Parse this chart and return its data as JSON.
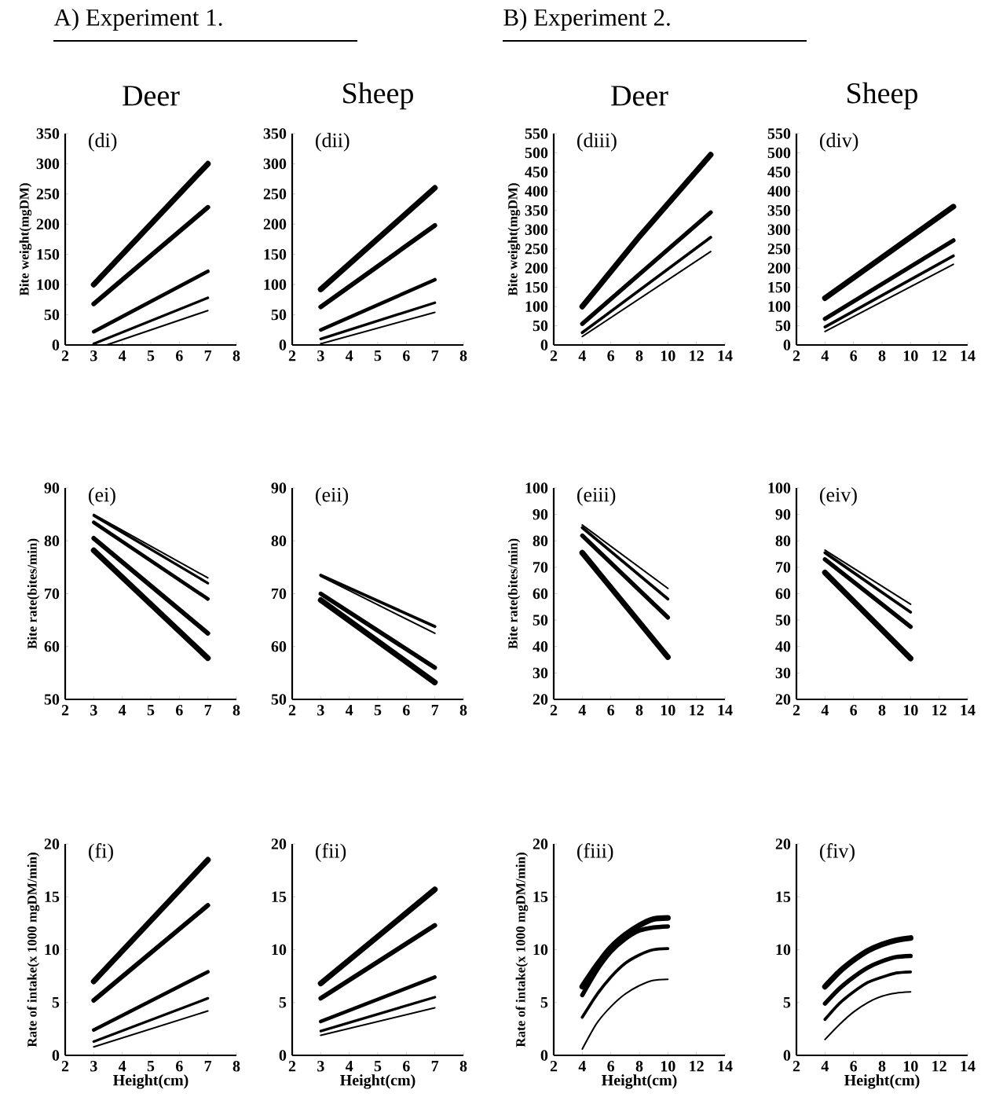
{
  "chart_data": [
    {
      "type": "line",
      "title": "(di)",
      "subtitle": "Deer",
      "annotations": [
        "A) Experiment 1."
      ],
      "ylabel": "Bite weight(mgDM)",
      "x": [
        3,
        7
      ],
      "xlim": [
        2,
        8
      ],
      "xticks": [
        2,
        3,
        4,
        5,
        6,
        7,
        8
      ],
      "ylim": [
        0,
        350
      ],
      "yticks": [
        0,
        50,
        100,
        150,
        200,
        250,
        300,
        350
      ],
      "series": [
        {
          "color": "#000000",
          "values": [
            100,
            300
          ]
        },
        {
          "color": "#000000",
          "values": [
            68,
            228
          ]
        },
        {
          "color": "#000000",
          "values": [
            22,
            122
          ]
        },
        {
          "color": "#000000",
          "values": [
            2,
            78
          ]
        },
        {
          "color": "#000000",
          "x": [
            3.45,
            7
          ],
          "values": [
            0,
            57
          ]
        }
      ]
    },
    {
      "type": "line",
      "title": "(dii)",
      "subtitle": "Sheep",
      "x": [
        3,
        7
      ],
      "xlim": [
        2,
        8
      ],
      "xticks": [
        2,
        3,
        4,
        5,
        6,
        7,
        8
      ],
      "ylim": [
        0,
        350
      ],
      "yticks": [
        0,
        50,
        100,
        150,
        200,
        250,
        300,
        350
      ],
      "series": [
        {
          "color": "#000000",
          "values": [
            92,
            260
          ]
        },
        {
          "color": "#000000",
          "values": [
            63,
            198
          ]
        },
        {
          "color": "#000000",
          "values": [
            25,
            108
          ]
        },
        {
          "color": "#000000",
          "values": [
            10,
            70
          ]
        },
        {
          "color": "#000000",
          "values": [
            2,
            54
          ]
        }
      ]
    },
    {
      "type": "line",
      "title": "(diii)",
      "subtitle": "Deer",
      "annotations": [
        "B) Experiment 2."
      ],
      "ylabel": "Bite weight(mgDM)",
      "x": [
        4,
        13
      ],
      "xlim": [
        2,
        14
      ],
      "xticks": [
        2,
        4,
        6,
        8,
        10,
        12,
        14
      ],
      "ylim": [
        0,
        550
      ],
      "yticks": [
        0,
        50,
        100,
        150,
        200,
        250,
        300,
        350,
        400,
        450,
        500,
        550
      ],
      "series": [
        {
          "color": "#000000",
          "x": [
            4,
            8,
            13
          ],
          "values": [
            100,
            282,
            495
          ]
        },
        {
          "color": "#000000",
          "values": [
            55,
            345
          ]
        },
        {
          "color": "#000000",
          "values": [
            32,
            280
          ]
        },
        {
          "color": "#000000",
          "values": [
            22,
            243
          ]
        }
      ]
    },
    {
      "type": "line",
      "title": "(div)",
      "subtitle": "Sheep",
      "x": [
        4,
        13
      ],
      "xlim": [
        2,
        14
      ],
      "xticks": [
        2,
        4,
        6,
        8,
        10,
        12,
        14
      ],
      "ylim": [
        0,
        550
      ],
      "yticks": [
        0,
        50,
        100,
        150,
        200,
        250,
        300,
        350,
        400,
        450,
        500,
        550
      ],
      "series": [
        {
          "color": "#000000",
          "values": [
            122,
            360
          ]
        },
        {
          "color": "#000000",
          "values": [
            68,
            272
          ]
        },
        {
          "color": "#000000",
          "values": [
            47,
            232
          ]
        },
        {
          "color": "#000000",
          "values": [
            35,
            210
          ]
        }
      ]
    },
    {
      "type": "line",
      "title": "(ei)",
      "ylabel": "Bite rate(bites/min)",
      "x": [
        3,
        7
      ],
      "xlim": [
        2,
        8
      ],
      "xticks": [
        2,
        3,
        4,
        5,
        6,
        7,
        8
      ],
      "ylim": [
        50,
        90
      ],
      "yticks": [
        50,
        60,
        70,
        80,
        90
      ],
      "series": [
        {
          "color": "#000000",
          "values": [
            78.2,
            57.8
          ]
        },
        {
          "color": "#000000",
          "values": [
            80.5,
            62.5
          ]
        },
        {
          "color": "#000000",
          "values": [
            83.5,
            69
          ]
        },
        {
          "color": "#000000",
          "values": [
            84.8,
            72
          ]
        },
        {
          "color": "#000000",
          "values": [
            85,
            73
          ]
        }
      ]
    },
    {
      "type": "line",
      "title": "(eii)",
      "x": [
        3,
        7
      ],
      "xlim": [
        2,
        8
      ],
      "xticks": [
        2,
        3,
        4,
        5,
        6,
        7,
        8
      ],
      "ylim": [
        50,
        90
      ],
      "yticks": [
        50,
        60,
        70,
        80,
        90
      ],
      "series": [
        {
          "color": "#000000",
          "values": [
            68.8,
            53.2
          ]
        },
        {
          "color": "#000000",
          "values": [
            70,
            56
          ]
        },
        {
          "color": "#000000",
          "values": [
            73.5,
            63.8
          ]
        },
        {
          "color": "#000000",
          "values": [
            73.3,
            62.5
          ]
        }
      ]
    },
    {
      "type": "line",
      "title": "(eiii)",
      "ylabel": "Bite rate(bites/min)",
      "x": [
        4,
        10
      ],
      "xlim": [
        2,
        14
      ],
      "xticks": [
        2,
        4,
        6,
        8,
        10,
        12,
        14
      ],
      "ylim": [
        20,
        100
      ],
      "yticks": [
        20,
        30,
        40,
        50,
        60,
        70,
        80,
        90,
        100
      ],
      "series": [
        {
          "color": "#000000",
          "values": [
            75.5,
            36
          ]
        },
        {
          "color": "#000000",
          "values": [
            82,
            51
          ]
        },
        {
          "color": "#000000",
          "values": [
            85,
            58
          ]
        },
        {
          "color": "#000000",
          "values": [
            86,
            62
          ]
        }
      ]
    },
    {
      "type": "line",
      "title": "(eiv)",
      "x": [
        4,
        10
      ],
      "xlim": [
        2,
        14
      ],
      "xticks": [
        2,
        4,
        6,
        8,
        10,
        12,
        14
      ],
      "ylim": [
        20,
        100
      ],
      "yticks": [
        20,
        30,
        40,
        50,
        60,
        70,
        80,
        90,
        100
      ],
      "series": [
        {
          "color": "#000000",
          "values": [
            68,
            35.5
          ]
        },
        {
          "color": "#000000",
          "values": [
            73,
            47.5
          ]
        },
        {
          "color": "#000000",
          "values": [
            75.5,
            53
          ]
        },
        {
          "color": "#000000",
          "values": [
            76.5,
            56
          ]
        }
      ]
    },
    {
      "type": "line",
      "title": "(fi)",
      "ylabel": "Rate of intake(x 1000 mgDM/min)",
      "xlabel": "Height(cm)",
      "x": [
        3,
        7
      ],
      "xlim": [
        2,
        8
      ],
      "xticks": [
        2,
        3,
        4,
        5,
        6,
        7,
        8
      ],
      "ylim": [
        0,
        20
      ],
      "yticks": [
        0,
        5,
        10,
        15,
        20
      ],
      "series": [
        {
          "color": "#000000",
          "values": [
            7,
            18.5
          ]
        },
        {
          "color": "#000000",
          "values": [
            5.2,
            14.2
          ]
        },
        {
          "color": "#000000",
          "values": [
            2.4,
            7.9
          ]
        },
        {
          "color": "#000000",
          "values": [
            1.3,
            5.4
          ]
        },
        {
          "color": "#000000",
          "values": [
            0.8,
            4.2
          ]
        }
      ]
    },
    {
      "type": "line",
      "title": "(fii)",
      "xlabel": "Height(cm)",
      "x": [
        3,
        7
      ],
      "xlim": [
        2,
        8
      ],
      "xticks": [
        2,
        3,
        4,
        5,
        6,
        7,
        8
      ],
      "ylim": [
        0,
        20
      ],
      "yticks": [
        0,
        5,
        10,
        15,
        20
      ],
      "series": [
        {
          "color": "#000000",
          "values": [
            6.8,
            15.7
          ]
        },
        {
          "color": "#000000",
          "values": [
            5.4,
            12.3
          ]
        },
        {
          "color": "#000000",
          "values": [
            3.2,
            7.4
          ]
        },
        {
          "color": "#000000",
          "values": [
            2.3,
            5.5
          ]
        },
        {
          "color": "#000000",
          "values": [
            1.9,
            4.5
          ]
        }
      ]
    },
    {
      "type": "line",
      "title": "(fiii)",
      "ylabel": "Rate of intake(x 1000 mgDM/min)",
      "xlabel": "Height(cm)",
      "x": [
        4,
        5,
        6,
        7,
        8,
        9,
        10
      ],
      "xlim": [
        2,
        14
      ],
      "xticks": [
        2,
        4,
        6,
        8,
        10,
        12,
        14
      ],
      "ylim": [
        0,
        20
      ],
      "yticks": [
        0,
        5,
        10,
        15,
        20
      ],
      "series": [
        {
          "color": "#000000",
          "values": [
            6.5,
            8.5,
            10.2,
            11.4,
            12.3,
            12.9,
            13.0
          ]
        },
        {
          "color": "#000000",
          "values": [
            5.7,
            8.0,
            9.8,
            11.0,
            11.8,
            12.1,
            12.2
          ]
        },
        {
          "color": "#000000",
          "values": [
            3.6,
            5.7,
            7.4,
            8.7,
            9.5,
            10.0,
            10.1
          ]
        },
        {
          "color": "#000000",
          "values": [
            0.6,
            3.0,
            4.6,
            5.8,
            6.6,
            7.1,
            7.2
          ]
        }
      ]
    },
    {
      "type": "line",
      "title": "(fiv)",
      "xlabel": "Height(cm)",
      "x": [
        4,
        5,
        6,
        7,
        8,
        9,
        10
      ],
      "xlim": [
        2,
        14
      ],
      "xticks": [
        2,
        4,
        6,
        8,
        10,
        12,
        14
      ],
      "ylim": [
        0,
        20
      ],
      "yticks": [
        0,
        5,
        10,
        15,
        20
      ],
      "series": [
        {
          "color": "#000000",
          "values": [
            6.5,
            7.9,
            9.0,
            9.9,
            10.5,
            10.9,
            11.1
          ]
        },
        {
          "color": "#000000",
          "values": [
            4.9,
            6.3,
            7.4,
            8.3,
            8.9,
            9.3,
            9.4
          ]
        },
        {
          "color": "#000000",
          "values": [
            3.4,
            4.9,
            6.0,
            6.9,
            7.4,
            7.8,
            7.9
          ]
        },
        {
          "color": "#000000",
          "values": [
            1.5,
            2.9,
            4.1,
            5.0,
            5.6,
            5.9,
            6.0
          ]
        }
      ]
    }
  ]
}
